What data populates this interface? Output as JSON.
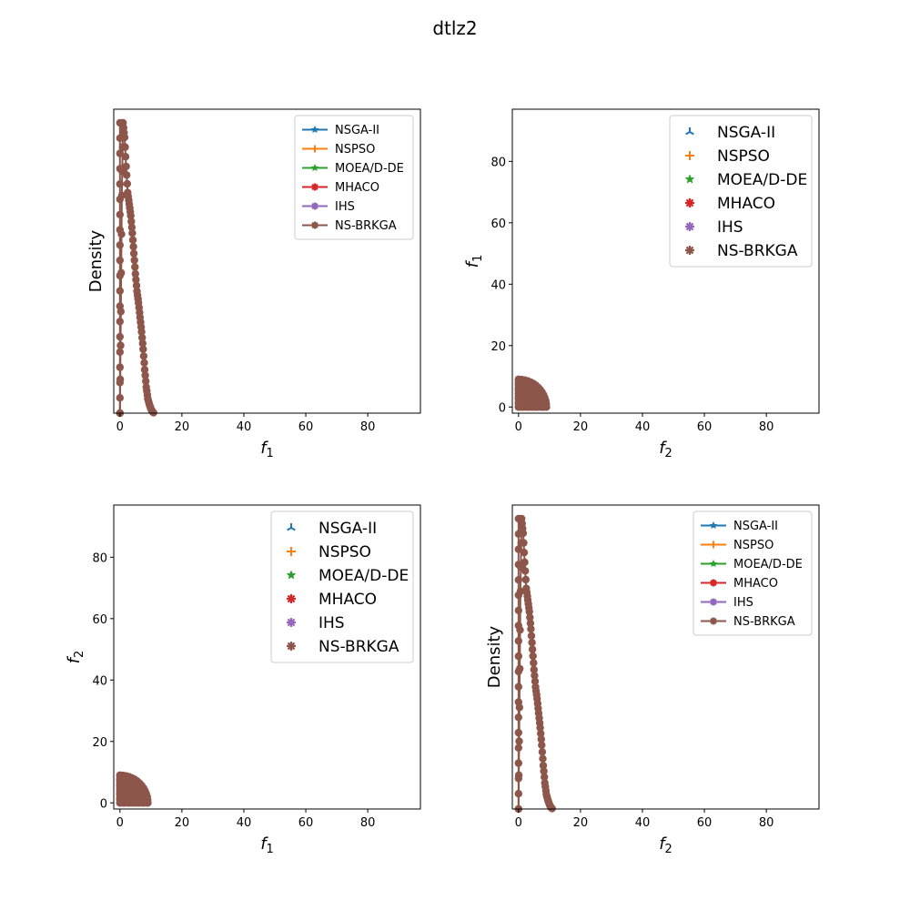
{
  "figure": {
    "title": "dtlz2"
  },
  "colors": {
    "NSGA-II": "#1f77b4",
    "NSPSO": "#ff7f0e",
    "MOEA/D-DE": "#2ca02c",
    "MHACO": "#d62728",
    "IHS": "#9467bd",
    "NS-BRKGA": "#8c564b"
  },
  "chart_data": [
    {
      "id": "p1",
      "type": "line",
      "subtype": "density",
      "xlabel": "f1",
      "ylabel": "Density",
      "xlim": [
        -2,
        97
      ],
      "xticks": [
        0,
        20,
        40,
        60,
        80
      ],
      "yticks_shown": false,
      "legend": "top-right",
      "series": [
        {
          "name": "NSGA-II",
          "marker": "star"
        },
        {
          "name": "NSPSO",
          "marker": "plus"
        },
        {
          "name": "MOEA/D-DE",
          "marker": "star"
        },
        {
          "name": "MHACO",
          "marker": "asterisk"
        },
        {
          "name": "IHS",
          "marker": "asterisk"
        },
        {
          "name": "NS-BRKGA",
          "marker": "asterisk"
        }
      ],
      "curve": {
        "x": [
          0,
          0.3,
          0.6,
          1,
          1.5,
          2,
          2.5,
          3,
          3.5,
          4,
          4.5,
          5,
          5.5,
          6,
          6.5,
          7,
          7.5,
          8,
          8.5,
          9,
          9.5,
          10,
          10.5,
          11
        ],
        "y": [
          0.0,
          0.35,
          0.75,
          1.0,
          0.95,
          0.85,
          0.76,
          0.72,
          0.68,
          0.62,
          0.55,
          0.48,
          0.42,
          0.38,
          0.33,
          0.28,
          0.22,
          0.15,
          0.09,
          0.05,
          0.03,
          0.015,
          0.005,
          0.0
        ]
      }
    },
    {
      "id": "p2",
      "type": "scatter",
      "xlabel": "f2",
      "ylabel": "f1",
      "xlim": [
        -2,
        97
      ],
      "ylim": [
        -2,
        97
      ],
      "xticks": [
        0,
        20,
        40,
        60,
        80
      ],
      "yticks": [
        0,
        20,
        40,
        60,
        80
      ],
      "legend": "top-right",
      "series": [
        {
          "name": "NSGA-II",
          "marker": "tri"
        },
        {
          "name": "NSPSO",
          "marker": "plus"
        },
        {
          "name": "MOEA/D-DE",
          "marker": "star"
        },
        {
          "name": "MHACO",
          "marker": "asterisk"
        },
        {
          "name": "IHS",
          "marker": "asterisk"
        },
        {
          "name": "NS-BRKGA",
          "marker": "asterisk"
        }
      ]
    },
    {
      "id": "p3",
      "type": "scatter",
      "xlabel": "f1",
      "ylabel": "f2",
      "xlim": [
        -2,
        97
      ],
      "ylim": [
        -2,
        97
      ],
      "xticks": [
        0,
        20,
        40,
        60,
        80
      ],
      "yticks": [
        0,
        20,
        40,
        60,
        80
      ],
      "legend": "top-right",
      "series": [
        {
          "name": "NSGA-II",
          "marker": "tri"
        },
        {
          "name": "NSPSO",
          "marker": "plus"
        },
        {
          "name": "MOEA/D-DE",
          "marker": "star"
        },
        {
          "name": "MHACO",
          "marker": "asterisk"
        },
        {
          "name": "IHS",
          "marker": "asterisk"
        },
        {
          "name": "NS-BRKGA",
          "marker": "asterisk"
        }
      ]
    },
    {
      "id": "p4",
      "type": "line",
      "subtype": "density",
      "xlabel": "f2",
      "ylabel": "Density",
      "xlim": [
        -2,
        97
      ],
      "xticks": [
        0,
        20,
        40,
        60,
        80
      ],
      "yticks_shown": false,
      "legend": "top-right",
      "series": [
        {
          "name": "NSGA-II",
          "marker": "star"
        },
        {
          "name": "NSPSO",
          "marker": "plus"
        },
        {
          "name": "MOEA/D-DE",
          "marker": "star"
        },
        {
          "name": "MHACO",
          "marker": "asterisk"
        },
        {
          "name": "IHS",
          "marker": "asterisk"
        },
        {
          "name": "NS-BRKGA",
          "marker": "asterisk"
        }
      ],
      "curve": {
        "x": [
          0,
          0.3,
          0.6,
          1,
          1.5,
          2,
          2.5,
          3,
          3.5,
          4,
          4.5,
          5,
          5.5,
          6,
          6.5,
          7,
          7.5,
          8,
          8.5,
          9,
          9.5,
          10,
          10.5,
          11
        ],
        "y": [
          0.0,
          0.35,
          0.75,
          1.0,
          0.95,
          0.85,
          0.76,
          0.72,
          0.68,
          0.62,
          0.55,
          0.48,
          0.42,
          0.38,
          0.33,
          0.28,
          0.22,
          0.15,
          0.09,
          0.05,
          0.03,
          0.015,
          0.005,
          0.0
        ]
      }
    }
  ]
}
